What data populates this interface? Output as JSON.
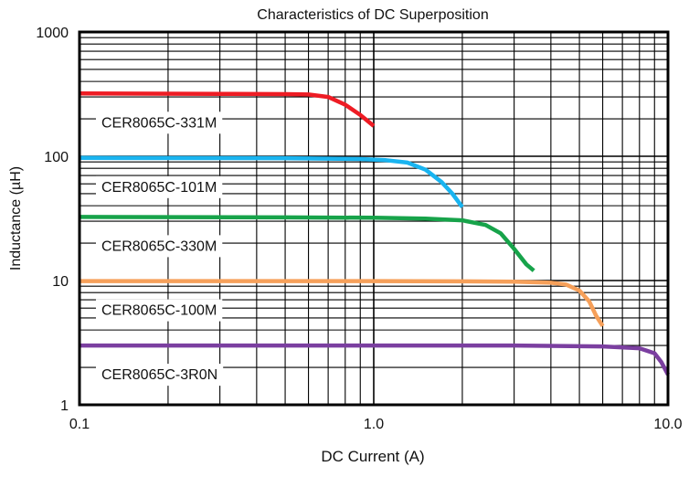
{
  "chart_data": {
    "type": "line",
    "title": "Characteristics of DC Superposition",
    "xlabel": "DC Current (A)",
    "ylabel": "Inductance (µH)",
    "x_scale": "log",
    "y_scale": "log",
    "xlim": [
      0.1,
      10.0
    ],
    "ylim": [
      1,
      1000
    ],
    "x_ticks": [
      "0.1",
      "1.0",
      "10.0"
    ],
    "y_ticks": [
      "1",
      "10",
      "100",
      "1000"
    ],
    "grid": true,
    "series": [
      {
        "name": "CER8065C-331M",
        "color": "#ee1c24",
        "points": [
          [
            0.1,
            320
          ],
          [
            0.3,
            318
          ],
          [
            0.5,
            316
          ],
          [
            0.6,
            314
          ],
          [
            0.7,
            300
          ],
          [
            0.8,
            260
          ],
          [
            0.9,
            215
          ],
          [
            1.0,
            175
          ]
        ]
      },
      {
        "name": "CER8065C-101M",
        "color": "#19b4f0",
        "points": [
          [
            0.1,
            97
          ],
          [
            0.5,
            96.5
          ],
          [
            0.9,
            95
          ],
          [
            1.1,
            93
          ],
          [
            1.3,
            89
          ],
          [
            1.5,
            78
          ],
          [
            1.7,
            62
          ],
          [
            1.85,
            50
          ],
          [
            2.0,
            39
          ]
        ]
      },
      {
        "name": "CER8065C-330M",
        "color": "#17a34a",
        "points": [
          [
            0.1,
            32.5
          ],
          [
            0.5,
            32.2
          ],
          [
            1.0,
            32
          ],
          [
            1.5,
            31.5
          ],
          [
            2.0,
            30.5
          ],
          [
            2.4,
            28
          ],
          [
            2.7,
            24
          ],
          [
            3.0,
            18
          ],
          [
            3.3,
            13.5
          ],
          [
            3.5,
            12
          ]
        ]
      },
      {
        "name": "CER8065C-100M",
        "color": "#f6a05a",
        "points": [
          [
            0.1,
            9.9
          ],
          [
            1.0,
            9.9
          ],
          [
            2.0,
            9.85
          ],
          [
            3.0,
            9.8
          ],
          [
            4.0,
            9.6
          ],
          [
            4.5,
            9.3
          ],
          [
            5.0,
            8.3
          ],
          [
            5.4,
            6.8
          ],
          [
            5.7,
            5.2
          ],
          [
            6.0,
            4.3
          ]
        ]
      },
      {
        "name": "CER8065C-3R0N",
        "color": "#7b3fa0",
        "points": [
          [
            0.1,
            3.0
          ],
          [
            1.0,
            3.0
          ],
          [
            3.0,
            3.0
          ],
          [
            6.0,
            2.95
          ],
          [
            8.0,
            2.85
          ],
          [
            9.0,
            2.6
          ],
          [
            9.5,
            2.2
          ],
          [
            10.0,
            1.75
          ]
        ]
      }
    ]
  }
}
